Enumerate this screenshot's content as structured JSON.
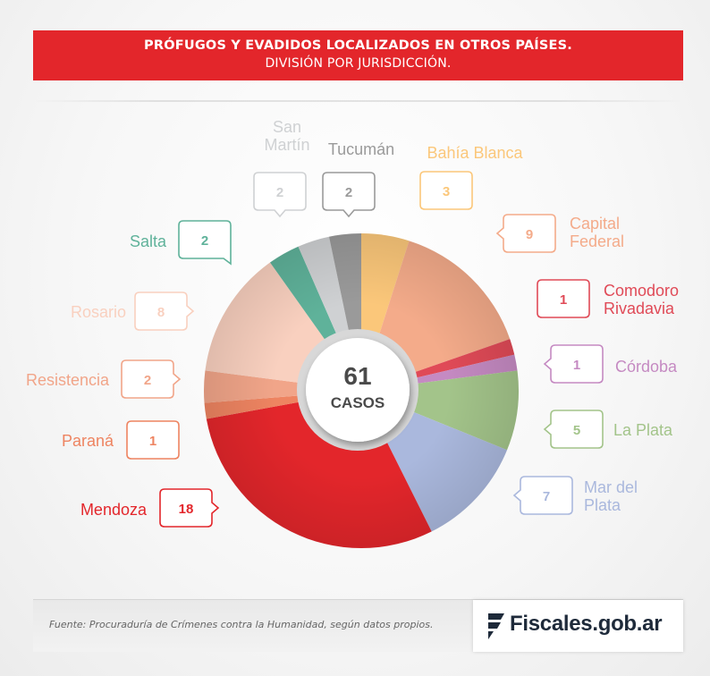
{
  "header": {
    "title": "PRÓFUGOS Y EVADIDOS LOCALIZADOS EN OTROS PAÍSES.",
    "subtitle": "DIVISIÓN POR JURISDICCIÓN."
  },
  "center": {
    "total": "61",
    "label": "CASOS"
  },
  "chart_data": {
    "type": "pie",
    "variant": "donut",
    "total": 61,
    "total_label": "CASOS",
    "categories": [
      "Bahía Blanca",
      "Capital Federal",
      "Comodoro Rivadavia",
      "Córdoba",
      "La Plata",
      "Mar del Plata",
      "Mendoza",
      "Paraná",
      "Resistencia",
      "Rosario",
      "Salta",
      "San Martín",
      "Tucumán"
    ],
    "values": [
      3,
      9,
      1,
      1,
      5,
      7,
      18,
      1,
      2,
      8,
      2,
      2,
      2
    ],
    "label_lines": [
      [
        "Bahía Blanca"
      ],
      [
        "Capital",
        "Federal"
      ],
      [
        "Comodoro",
        "Rivadavia"
      ],
      [
        "Córdoba"
      ],
      [
        "La Plata"
      ],
      [
        "Mar del",
        "Plata"
      ],
      [
        "Mendoza"
      ],
      [
        "Paraná"
      ],
      [
        "Resistencia"
      ],
      [
        "Rosario"
      ],
      [
        "Salta"
      ],
      [
        "San",
        "Martín"
      ],
      [
        "Tucumán"
      ]
    ],
    "colors": [
      "#fbc77a",
      "#f4ab8a",
      "#e04a57",
      "#c58ac2",
      "#a3c48a",
      "#aab8dd",
      "#e3262b",
      "#ee8461",
      "#f1a589",
      "#f9d0bf",
      "#5fb29a",
      "#cfd1d3",
      "#9a9a9a"
    ],
    "start": "12 o'clock",
    "direction": "clockwise"
  },
  "footer": {
    "source": "Fuente: Procuraduría de Crímenes contra la Humanidad, según datos propios.",
    "logo_main": "Fiscales",
    "logo_suffix": ".gob.ar"
  }
}
